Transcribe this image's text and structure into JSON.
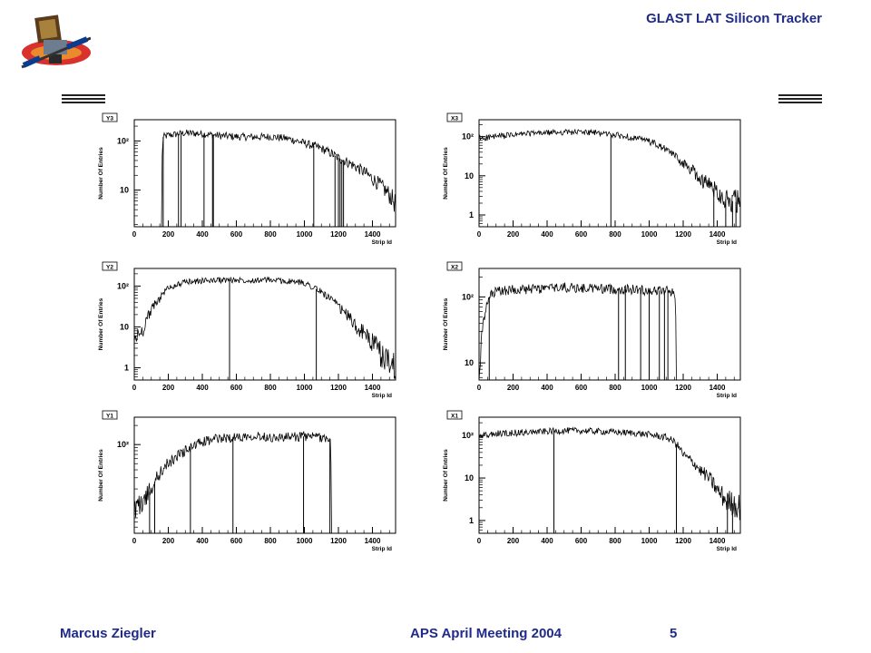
{
  "header": {
    "title": "GLAST LAT Silicon Tracker"
  },
  "footer": {
    "author": "Marcus Ziegler",
    "meeting": "APS April Meeting 2004",
    "page": "5"
  },
  "chart_data": [
    {
      "type": "line",
      "title": "Y3",
      "ylabel": "Number Of Entries",
      "xlabel": "Strip Id",
      "ylog": true,
      "xlim": [
        0,
        1536
      ],
      "ylim": [
        1.8,
        270
      ],
      "yticks": [
        {
          "v": 10,
          "l": "10"
        },
        {
          "v": 100,
          "l": "10²"
        }
      ],
      "xticks": [
        0,
        200,
        400,
        600,
        800,
        1000,
        1200,
        1400
      ],
      "profile": [
        [
          0,
          0
        ],
        [
          160,
          0
        ],
        [
          170,
          120
        ],
        [
          200,
          130
        ],
        [
          300,
          145
        ],
        [
          400,
          140
        ],
        [
          500,
          128
        ],
        [
          600,
          122
        ],
        [
          700,
          120
        ],
        [
          800,
          122
        ],
        [
          900,
          112
        ],
        [
          1000,
          90
        ],
        [
          1100,
          70
        ],
        [
          1200,
          45
        ],
        [
          1300,
          30
        ],
        [
          1400,
          17
        ],
        [
          1450,
          12
        ],
        [
          1536,
          5
        ]
      ],
      "dips": [
        170,
        260,
        275,
        410,
        460,
        465,
        1055,
        1180,
        1200,
        1210,
        1220,
        1230
      ]
    },
    {
      "type": "line",
      "title": "X3",
      "ylabel": "Number Of Entries",
      "xlabel": "Strip Id",
      "ylog": true,
      "xlim": [
        0,
        1536
      ],
      "ylim": [
        0.5,
        270
      ],
      "yticks": [
        {
          "v": 1,
          "l": "1"
        },
        {
          "v": 10,
          "l": "10"
        },
        {
          "v": 100,
          "l": "10²"
        }
      ],
      "xticks": [
        0,
        200,
        400,
        600,
        800,
        1000,
        1200,
        1400
      ],
      "profile": [
        [
          0,
          90
        ],
        [
          100,
          100
        ],
        [
          200,
          110
        ],
        [
          300,
          120
        ],
        [
          400,
          125
        ],
        [
          500,
          130
        ],
        [
          600,
          130
        ],
        [
          700,
          125
        ],
        [
          800,
          110
        ],
        [
          900,
          95
        ],
        [
          1000,
          75
        ],
        [
          1100,
          45
        ],
        [
          1200,
          20
        ],
        [
          1300,
          8
        ],
        [
          1400,
          4
        ],
        [
          1450,
          2.5
        ],
        [
          1536,
          2
        ]
      ],
      "dips": [
        775,
        1380,
        1450,
        1490,
        1510
      ]
    },
    {
      "type": "line",
      "title": "Y2",
      "ylabel": "Number Of Entries",
      "xlabel": "Strip Id",
      "ylog": true,
      "xlim": [
        0,
        1536
      ],
      "ylim": [
        0.5,
        270
      ],
      "yticks": [
        {
          "v": 1,
          "l": "1"
        },
        {
          "v": 10,
          "l": "10"
        },
        {
          "v": 100,
          "l": "10²"
        }
      ],
      "xticks": [
        0,
        200,
        400,
        600,
        800,
        1000,
        1200,
        1400
      ],
      "profile": [
        [
          0,
          5
        ],
        [
          50,
          8
        ],
        [
          100,
          25
        ],
        [
          150,
          50
        ],
        [
          200,
          90
        ],
        [
          300,
          125
        ],
        [
          400,
          135
        ],
        [
          500,
          140
        ],
        [
          600,
          140
        ],
        [
          700,
          140
        ],
        [
          800,
          140
        ],
        [
          900,
          130
        ],
        [
          1000,
          120
        ],
        [
          1100,
          70
        ],
        [
          1200,
          30
        ],
        [
          1300,
          10
        ],
        [
          1400,
          4
        ],
        [
          1450,
          2
        ],
        [
          1536,
          1
        ]
      ],
      "dips": [
        560,
        1070
      ]
    },
    {
      "type": "line",
      "title": "X2",
      "ylabel": "Number Of Entries",
      "xlabel": "Strip Id",
      "ylog": true,
      "xlim": [
        0,
        1536
      ],
      "ylim": [
        5.5,
        270
      ],
      "yticks": [
        {
          "v": 10,
          "l": "10"
        },
        {
          "v": 100,
          "l": "10²"
        }
      ],
      "xticks": [
        0,
        200,
        400,
        600,
        800,
        1000,
        1200,
        1400
      ],
      "profile": [
        [
          0,
          0
        ],
        [
          40,
          60
        ],
        [
          60,
          100
        ],
        [
          100,
          120
        ],
        [
          200,
          130
        ],
        [
          300,
          130
        ],
        [
          400,
          135
        ],
        [
          500,
          140
        ],
        [
          600,
          135
        ],
        [
          700,
          135
        ],
        [
          800,
          130
        ],
        [
          900,
          130
        ],
        [
          1000,
          125
        ],
        [
          1100,
          125
        ],
        [
          1150,
          120
        ],
        [
          1160,
          0
        ],
        [
          1536,
          0
        ]
      ],
      "dips": [
        60,
        820,
        860,
        950,
        1000,
        1060,
        1090,
        1110
      ]
    },
    {
      "type": "line",
      "title": "Y1",
      "ylabel": "Number Of Entries",
      "xlabel": "Strip Id",
      "ylog": true,
      "xlim": [
        0,
        1536
      ],
      "ylim": [
        4,
        270
      ],
      "yticks": [
        {
          "v": 100,
          "l": "10²"
        }
      ],
      "xticks": [
        0,
        200,
        400,
        600,
        800,
        1000,
        1200,
        1400
      ],
      "profile": [
        [
          0,
          10
        ],
        [
          50,
          12
        ],
        [
          100,
          20
        ],
        [
          150,
          35
        ],
        [
          200,
          50
        ],
        [
          300,
          80
        ],
        [
          400,
          110
        ],
        [
          500,
          125
        ],
        [
          600,
          130
        ],
        [
          700,
          140
        ],
        [
          800,
          130
        ],
        [
          900,
          130
        ],
        [
          1000,
          135
        ],
        [
          1100,
          130
        ],
        [
          1150,
          125
        ],
        [
          1160,
          0
        ],
        [
          1536,
          0
        ]
      ],
      "dips": [
        90,
        120,
        330,
        580,
        995,
        1150
      ]
    },
    {
      "type": "line",
      "title": "X1",
      "ylabel": "Number Of Entries",
      "xlabel": "Strip Id",
      "ylog": true,
      "xlim": [
        0,
        1536
      ],
      "ylim": [
        0.5,
        270
      ],
      "yticks": [
        {
          "v": 1,
          "l": "1"
        },
        {
          "v": 10,
          "l": "10"
        },
        {
          "v": 100,
          "l": "10²"
        }
      ],
      "xticks": [
        0,
        200,
        400,
        600,
        800,
        1000,
        1200,
        1400
      ],
      "profile": [
        [
          0,
          95
        ],
        [
          100,
          110
        ],
        [
          200,
          115
        ],
        [
          300,
          120
        ],
        [
          400,
          125
        ],
        [
          500,
          130
        ],
        [
          600,
          130
        ],
        [
          700,
          125
        ],
        [
          800,
          120
        ],
        [
          900,
          115
        ],
        [
          1000,
          105
        ],
        [
          1100,
          90
        ],
        [
          1150,
          70
        ],
        [
          1200,
          35
        ],
        [
          1300,
          15
        ],
        [
          1400,
          5
        ],
        [
          1450,
          3
        ],
        [
          1536,
          2
        ]
      ],
      "dips": [
        440,
        1160,
        1460,
        1490
      ]
    }
  ]
}
